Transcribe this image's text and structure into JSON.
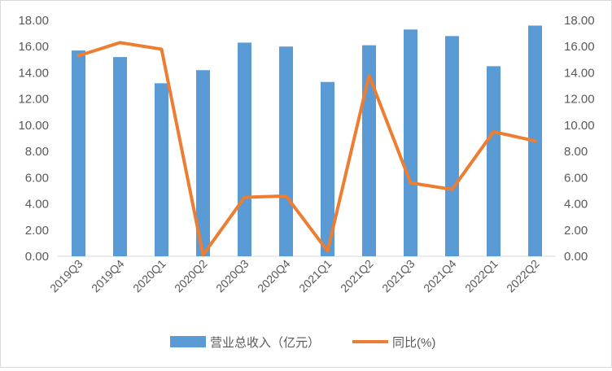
{
  "chart_data": {
    "type": "bar",
    "categories": [
      "2019Q3",
      "2019Q4",
      "2020Q1",
      "2020Q2",
      "2020Q3",
      "2020Q4",
      "2021Q1",
      "2021Q2",
      "2021Q3",
      "2021Q4",
      "2022Q1",
      "2022Q2"
    ],
    "series": [
      {
        "name": "营业总收入（亿元）",
        "type": "bar",
        "axis": "left",
        "color": "#5b9bd5",
        "values": [
          15.7,
          15.2,
          13.2,
          14.2,
          16.3,
          16.0,
          13.3,
          16.1,
          17.3,
          16.8,
          14.5,
          17.6
        ]
      },
      {
        "name": "同比(%)",
        "type": "line",
        "axis": "right",
        "color": "#ed7d31",
        "values": [
          15.3,
          16.3,
          15.8,
          0.1,
          4.5,
          4.6,
          0.4,
          13.8,
          5.6,
          5.1,
          9.5,
          8.8
        ]
      }
    ],
    "y_left": {
      "min": 0,
      "max": 18,
      "step": 2,
      "tick_labels": [
        "0.00",
        "2.00",
        "4.00",
        "6.00",
        "8.00",
        "10.00",
        "12.00",
        "14.00",
        "16.00",
        "18.00"
      ]
    },
    "y_right": {
      "min": 0,
      "max": 18,
      "step": 2,
      "tick_labels": [
        "0.00",
        "2.00",
        "4.00",
        "6.00",
        "8.00",
        "10.00",
        "12.00",
        "14.00",
        "16.00",
        "18.00"
      ]
    },
    "grid": false,
    "legend_position": "bottom"
  }
}
